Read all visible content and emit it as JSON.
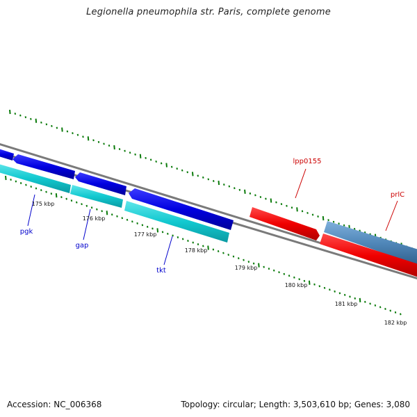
{
  "title": "Legionella pneumophila str. Paris, complete genome",
  "footer": {
    "accession_label": "Accession:",
    "accession": "NC_006368",
    "stats": "Topology: circular; Length: 3,503,610 bp; Genes: 3,080"
  },
  "ticks": {
    "unit": "kbp",
    "labels": [
      "175 kbp",
      "176 kbp",
      "177 kbp",
      "178 kbp",
      "179 kbp",
      "180 kbp",
      "181 kbp",
      "182 kbp"
    ]
  },
  "genes": [
    {
      "name": "pgk",
      "color": "#0000cc"
    },
    {
      "name": "gap",
      "color": "#0000cc"
    },
    {
      "name": "tkt",
      "color": "#0000cc"
    },
    {
      "name": "lpp0155",
      "color": "#cc0000"
    },
    {
      "name": "prlC",
      "color": "#cc0000"
    }
  ],
  "colors": {
    "backbone": "#777777",
    "cds_forward_blue": "#0a0ae6",
    "cds_reverse_cyan": "#1dcfd6",
    "cds_red": "#ee0000",
    "cds_steel": "#4f86b8",
    "tick": "#0a7a0a"
  }
}
